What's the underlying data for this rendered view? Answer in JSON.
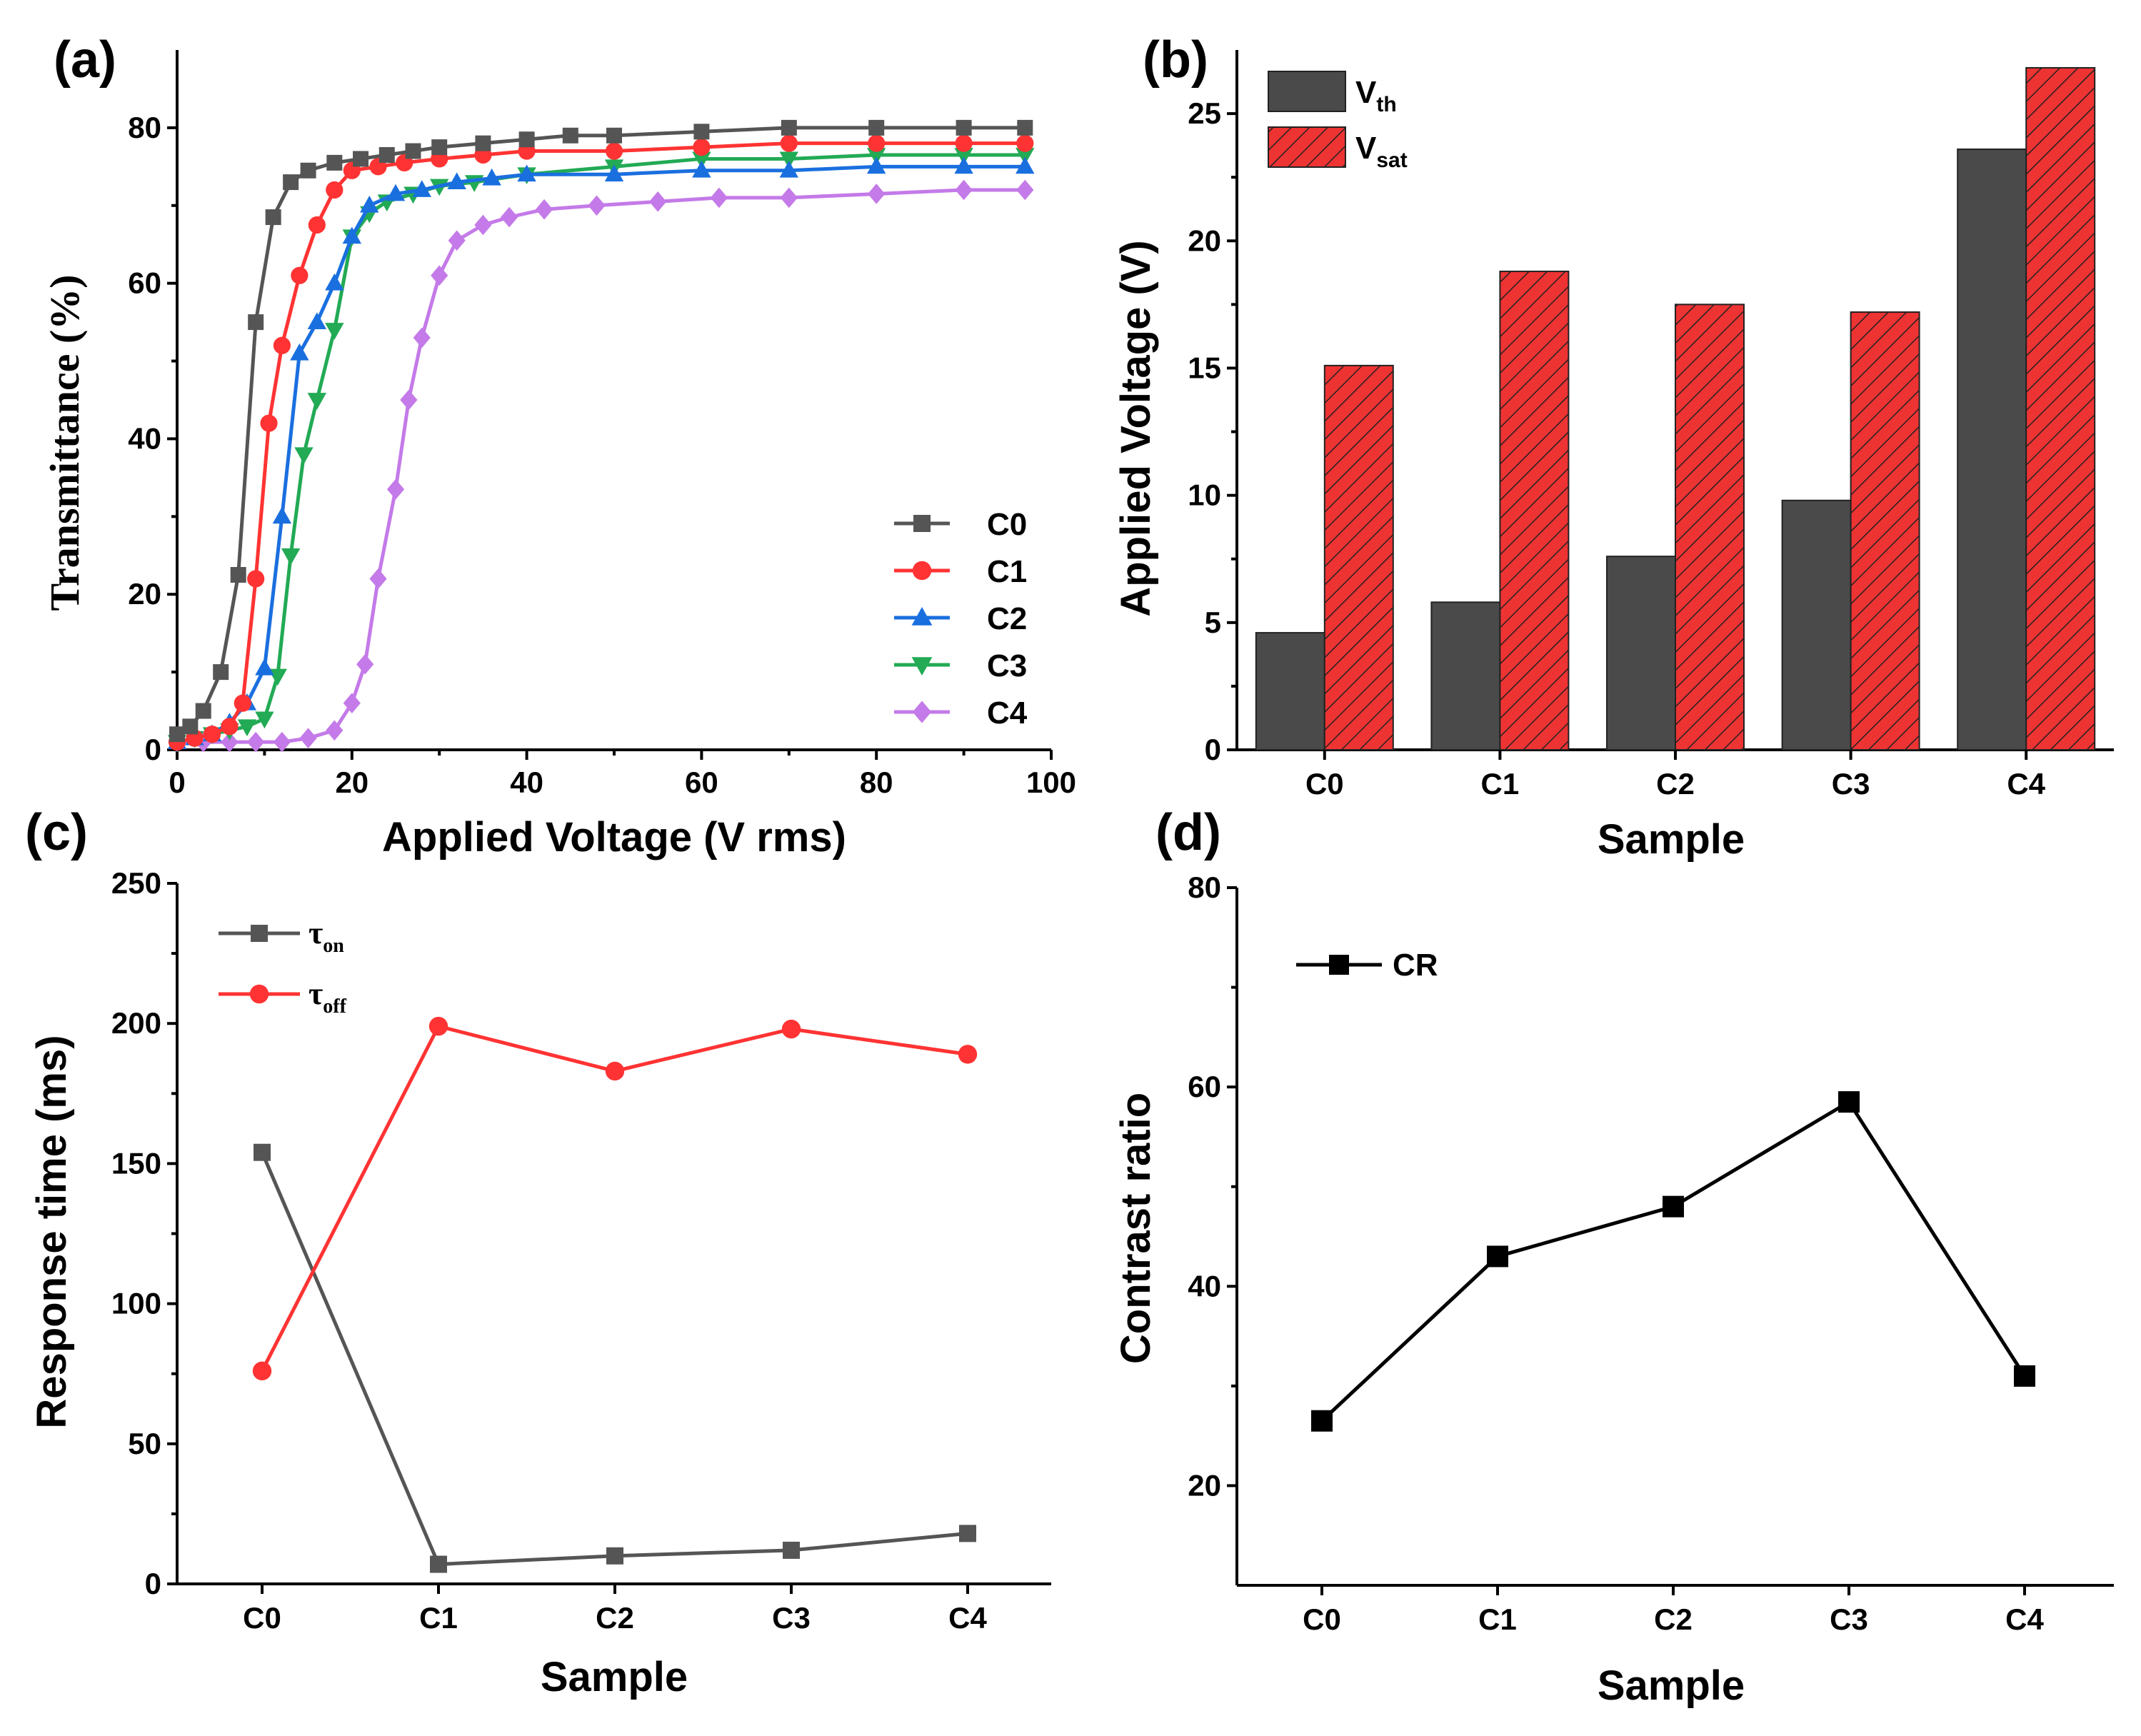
{
  "figure": {
    "panels": [
      "(a)",
      "(b)",
      "(c)",
      "(d)"
    ]
  },
  "chart_data": [
    {
      "id": "a",
      "type": "line",
      "panel_label": "(a)",
      "xlabel": "Applied Voltage (V rms)",
      "ylabel": "Transmittance (%)",
      "xlim": [
        0,
        100
      ],
      "ylim": [
        0,
        90
      ],
      "xticks": [
        "0",
        "20",
        "40",
        "60",
        "80",
        "100"
      ],
      "yticks": [
        "0",
        "20",
        "40",
        "60",
        "80"
      ],
      "legend_position": "bottom-right",
      "series": [
        {
          "name": "C0",
          "color": "#555555",
          "marker": "square",
          "x": [
            0,
            1.5,
            3,
            5,
            7,
            9,
            11,
            13,
            15,
            18,
            21,
            24,
            27,
            30,
            35,
            40,
            45,
            50,
            60,
            70,
            80,
            90,
            97
          ],
          "y": [
            2,
            3,
            5,
            10,
            22.5,
            55,
            68.5,
            73,
            74.5,
            75.5,
            76,
            76.5,
            77,
            77.5,
            78,
            78.5,
            79,
            79,
            79.5,
            80,
            80,
            80,
            80
          ]
        },
        {
          "name": "C1",
          "color": "#ff3333",
          "marker": "circle",
          "x": [
            0,
            2,
            4,
            6,
            7.5,
            9,
            10.5,
            12,
            14,
            16,
            18,
            20,
            23,
            26,
            30,
            35,
            40,
            50,
            60,
            70,
            80,
            90,
            97
          ],
          "y": [
            1,
            1.5,
            2,
            3,
            6,
            22,
            42,
            52,
            61,
            67.5,
            72,
            74.5,
            75,
            75.5,
            76,
            76.5,
            77,
            77,
            77.5,
            78,
            78,
            78,
            78
          ]
        },
        {
          "name": "C2",
          "color": "#1a6fdf",
          "marker": "triangle-up",
          "x": [
            0,
            2,
            4,
            6,
            8,
            10,
            12,
            14,
            16,
            18,
            20,
            22,
            25,
            28,
            32,
            36,
            40,
            50,
            60,
            70,
            80,
            90,
            97
          ],
          "y": [
            1,
            1.5,
            2,
            3.5,
            6,
            10.5,
            30,
            51,
            55,
            60,
            66,
            70,
            71.5,
            72,
            73,
            73.5,
            74,
            74,
            74.5,
            74.5,
            75,
            75,
            75
          ]
        },
        {
          "name": "C3",
          "color": "#22aa55",
          "marker": "triangle-down",
          "x": [
            0,
            2,
            4,
            6,
            8,
            10,
            11.5,
            13,
            14.5,
            16,
            18,
            20,
            22,
            24,
            27,
            30,
            34,
            40,
            50,
            60,
            70,
            80,
            90,
            97
          ],
          "y": [
            1,
            1.5,
            2,
            2.5,
            3,
            4,
            9.5,
            25,
            38,
            45,
            54,
            66,
            69,
            70.5,
            71.5,
            72.5,
            73,
            74,
            75,
            76,
            76,
            76.5,
            76.5,
            76.5
          ]
        },
        {
          "name": "C4",
          "color": "#c47ae8",
          "marker": "diamond",
          "x": [
            0,
            3,
            6,
            9,
            12,
            15,
            18,
            20,
            21.5,
            23,
            25,
            26.5,
            28,
            30,
            32,
            35,
            38,
            42,
            48,
            55,
            62,
            70,
            80,
            90,
            97
          ],
          "y": [
            1,
            1,
            1,
            1,
            1,
            1.5,
            2.5,
            6,
            11,
            22,
            33.5,
            45,
            53,
            61,
            65.5,
            67.5,
            68.5,
            69.5,
            70,
            70.5,
            71,
            71,
            71.5,
            72,
            72
          ]
        }
      ]
    },
    {
      "id": "b",
      "type": "bar",
      "panel_label": "(b)",
      "xlabel": "Sample",
      "ylabel": "Applied Voltage (V)",
      "ylim": [
        0,
        27.5
      ],
      "yticks": [
        "0",
        "5",
        "10",
        "15",
        "20",
        "25"
      ],
      "categories": [
        "C0",
        "C1",
        "C2",
        "C3",
        "C4"
      ],
      "legend_position": "top-left",
      "series": [
        {
          "name": "V",
          "subscript": "th",
          "color": "#4a4a4a",
          "values": [
            4.6,
            5.8,
            7.6,
            9.8,
            23.6
          ]
        },
        {
          "name": "V",
          "subscript": "sat",
          "color": "#ee3333",
          "hatch": true,
          "values": [
            15.1,
            18.8,
            17.5,
            17.2,
            26.8
          ]
        }
      ]
    },
    {
      "id": "c",
      "type": "line",
      "panel_label": "(c)",
      "xlabel": "Sample",
      "ylabel": "Response time (ms)",
      "ylim": [
        0,
        250
      ],
      "yticks": [
        "0",
        "50",
        "100",
        "150",
        "200",
        "250"
      ],
      "categories": [
        "C0",
        "C1",
        "C2",
        "C3",
        "C4"
      ],
      "legend_position": "top-left",
      "series": [
        {
          "name": "τ",
          "subscript": "on",
          "color": "#555555",
          "marker": "square",
          "values": [
            154,
            7,
            10,
            12,
            18
          ]
        },
        {
          "name": "τ",
          "subscript": "off",
          "color": "#ff3333",
          "marker": "circle",
          "values": [
            76,
            199,
            183,
            198,
            189
          ]
        }
      ]
    },
    {
      "id": "d",
      "type": "line",
      "panel_label": "(d)",
      "xlabel": "Sample",
      "ylabel": "Contrast ratio",
      "ylim": [
        10,
        80
      ],
      "yticks": [
        "20",
        "40",
        "60",
        "80"
      ],
      "categories": [
        "C0",
        "C1",
        "C2",
        "C3",
        "C4"
      ],
      "legend_position": "top-left",
      "series": [
        {
          "name": "CR",
          "color": "#000000",
          "marker": "square",
          "values": [
            26.5,
            43,
            48,
            58.5,
            31
          ]
        }
      ]
    }
  ]
}
